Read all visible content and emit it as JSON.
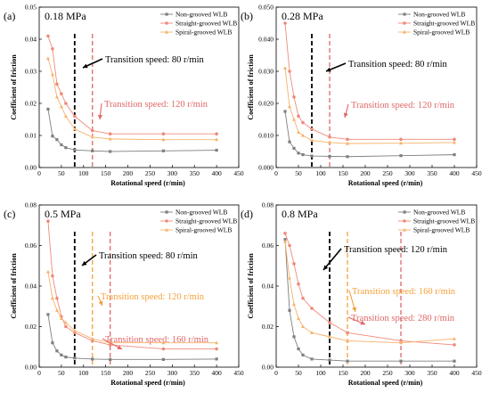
{
  "figure": {
    "colors": {
      "axis": "#000000",
      "transition_black": "#000000",
      "transition_red": "#e06666",
      "transition_orange": "#f5a03a",
      "non_grooved": "#7f7f7f",
      "straight_grooved": "#ef8a7a",
      "spiral_grooved": "#f6b26b"
    },
    "markers": {
      "non_grooved": "square",
      "straight_grooved": "circle",
      "spiral_grooved": "triangle"
    }
  },
  "chart_data": [
    {
      "type": "line",
      "panel_label": "(a)",
      "pressure": "0.18 MPa",
      "xlabel": "Rotational speed (r/min)",
      "ylabel": "Coefficient of friction",
      "xlim": [
        0,
        450
      ],
      "ylim": [
        0,
        0.05
      ],
      "xticks": [
        0,
        50,
        100,
        150,
        200,
        250,
        300,
        350,
        400,
        450
      ],
      "yticks": [
        0.0,
        0.01,
        0.02,
        0.03,
        0.04,
        0.05
      ],
      "ytick_labels": [
        "0.00",
        "0.01",
        "0.02",
        "0.03",
        "0.04",
        "0.05"
      ],
      "legend_position": "top-right",
      "series": [
        {
          "name": "Non-grooved WLB",
          "color_key": "non_grooved",
          "x": [
            20,
            30,
            40,
            50,
            60,
            80,
            120,
            160,
            280,
            400
          ],
          "y": [
            0.0182,
            0.0098,
            0.0087,
            0.0071,
            0.0062,
            0.0055,
            0.0052,
            0.005,
            0.0052,
            0.0054
          ]
        },
        {
          "name": "Straight-grooved WLB",
          "color_key": "straight_grooved",
          "x": [
            20,
            30,
            40,
            50,
            60,
            80,
            120,
            160,
            280,
            400
          ],
          "y": [
            0.041,
            0.037,
            0.026,
            0.023,
            0.02,
            0.016,
            0.0115,
            0.0105,
            0.0105,
            0.0105
          ]
        },
        {
          "name": "Spiral-grooved WLB",
          "color_key": "spiral_grooved",
          "x": [
            20,
            30,
            40,
            50,
            60,
            80,
            120,
            160,
            280,
            400
          ],
          "y": [
            0.034,
            0.029,
            0.022,
            0.019,
            0.016,
            0.012,
            0.0095,
            0.0089,
            0.0087,
            0.0087
          ]
        }
      ],
      "annotations": [
        {
          "text": "Transition speed: 80 r/min",
          "speed": 80,
          "color_key": "transition_black"
        },
        {
          "text": "Transition speed: 120 r/min",
          "speed": 120,
          "color_key": "transition_red"
        }
      ]
    },
    {
      "type": "line",
      "panel_label": "(b)",
      "pressure": "0.28 MPa",
      "xlabel": "Rotational speed (r/min)",
      "ylabel": "Coefficient of friction",
      "xlim": [
        0,
        450
      ],
      "ylim": [
        0,
        0.05
      ],
      "xticks": [
        0,
        50,
        100,
        150,
        200,
        250,
        300,
        350,
        400,
        450
      ],
      "yticks": [
        0.0,
        0.01,
        0.02,
        0.03,
        0.04,
        0.05
      ],
      "ytick_labels": [
        "0.000",
        "0.010",
        "0.020",
        "0.030",
        "0.040",
        "0.050"
      ],
      "legend_position": "top-right",
      "series": [
        {
          "name": "Non-grooved WLB",
          "color_key": "non_grooved",
          "x": [
            20,
            30,
            40,
            50,
            60,
            80,
            120,
            160,
            280,
            400
          ],
          "y": [
            0.0175,
            0.008,
            0.006,
            0.0045,
            0.004,
            0.0036,
            0.0035,
            0.0034,
            0.0037,
            0.004
          ]
        },
        {
          "name": "Straight-grooved WLB",
          "color_key": "straight_grooved",
          "x": [
            20,
            30,
            40,
            50,
            60,
            80,
            120,
            160,
            280,
            400
          ],
          "y": [
            0.045,
            0.03,
            0.022,
            0.016,
            0.014,
            0.012,
            0.0095,
            0.0088,
            0.0088,
            0.0088
          ]
        },
        {
          "name": "Spiral-grooved WLB",
          "color_key": "spiral_grooved",
          "x": [
            20,
            30,
            40,
            50,
            60,
            80,
            120,
            160,
            280,
            400
          ],
          "y": [
            0.031,
            0.019,
            0.015,
            0.011,
            0.01,
            0.0085,
            0.0078,
            0.0075,
            0.0076,
            0.0078
          ]
        }
      ],
      "annotations": [
        {
          "text": "Transition speed: 80 r/min",
          "speed": 80,
          "color_key": "transition_black"
        },
        {
          "text": "Transition speed: 120 r/min",
          "speed": 120,
          "color_key": "transition_red"
        }
      ]
    },
    {
      "type": "line",
      "panel_label": "(c)",
      "pressure": "0.5 MPa",
      "xlabel": "Rotational speed (r/min)",
      "ylabel": "Coefficient of friction",
      "xlim": [
        0,
        450
      ],
      "ylim": [
        0,
        0.08
      ],
      "xticks": [
        0,
        50,
        100,
        150,
        200,
        250,
        300,
        350,
        400,
        450
      ],
      "yticks": [
        0.0,
        0.02,
        0.04,
        0.06,
        0.08
      ],
      "ytick_labels": [
        "0.00",
        "0.02",
        "0.04",
        "0.06",
        "0.08"
      ],
      "legend_position": "top-right",
      "series": [
        {
          "name": "Non-grooved WLB",
          "color_key": "non_grooved",
          "x": [
            20,
            30,
            40,
            50,
            60,
            80,
            120,
            160,
            280,
            400
          ],
          "y": [
            0.026,
            0.012,
            0.008,
            0.006,
            0.005,
            0.0045,
            0.004,
            0.0038,
            0.0038,
            0.004
          ]
        },
        {
          "name": "Straight-grooved WLB",
          "color_key": "straight_grooved",
          "x": [
            20,
            30,
            40,
            50,
            60,
            80,
            120,
            160,
            280,
            400
          ],
          "y": [
            0.072,
            0.045,
            0.034,
            0.025,
            0.02,
            0.017,
            0.013,
            0.011,
            0.009,
            0.009
          ]
        },
        {
          "name": "Spiral-grooved WLB",
          "color_key": "spiral_grooved",
          "x": [
            20,
            30,
            40,
            50,
            60,
            80,
            120,
            160,
            280,
            400
          ],
          "y": [
            0.047,
            0.034,
            0.028,
            0.024,
            0.022,
            0.018,
            0.014,
            0.012,
            0.012,
            0.012
          ]
        }
      ],
      "annotations": [
        {
          "text": "Transition speed: 80 r/min",
          "speed": 80,
          "color_key": "transition_black"
        },
        {
          "text": "Transition speed: 120 r/min",
          "speed": 120,
          "color_key": "transition_orange"
        },
        {
          "text": "Transition speed: 160 r/min",
          "speed": 160,
          "color_key": "transition_red"
        }
      ]
    },
    {
      "type": "line",
      "panel_label": "(d)",
      "pressure": "0.8 MPa",
      "xlabel": "Rotational speed (r/min)",
      "ylabel": "Coefficient of friction",
      "xlim": [
        0,
        450
      ],
      "ylim": [
        0,
        0.08
      ],
      "xticks": [
        0,
        50,
        100,
        150,
        200,
        250,
        300,
        350,
        400,
        450
      ],
      "yticks": [
        0.0,
        0.02,
        0.04,
        0.06,
        0.08
      ],
      "ytick_labels": [
        "0.00",
        "0.02",
        "0.04",
        "0.06",
        "0.08"
      ],
      "legend_position": "top-right",
      "series": [
        {
          "name": "Non-grooved WLB",
          "color_key": "non_grooved",
          "x": [
            20,
            30,
            40,
            50,
            60,
            80,
            120,
            160,
            280,
            400
          ],
          "y": [
            0.063,
            0.028,
            0.015,
            0.009,
            0.006,
            0.004,
            0.0035,
            0.003,
            0.003,
            0.003
          ]
        },
        {
          "name": "Straight-grooved WLB",
          "color_key": "straight_grooved",
          "x": [
            20,
            30,
            40,
            50,
            60,
            80,
            120,
            160,
            280,
            400
          ],
          "y": [
            0.066,
            0.06,
            0.051,
            0.041,
            0.034,
            0.029,
            0.022,
            0.017,
            0.013,
            0.011
          ]
        },
        {
          "name": "Spiral-grooved WLB",
          "color_key": "spiral_grooved",
          "x": [
            20,
            30,
            40,
            50,
            60,
            80,
            120,
            160,
            280,
            400
          ],
          "y": [
            0.062,
            0.044,
            0.031,
            0.024,
            0.02,
            0.017,
            0.015,
            0.013,
            0.012,
            0.014
          ]
        }
      ],
      "annotations": [
        {
          "text": "Transition speed: 120 r/min",
          "speed": 120,
          "color_key": "transition_black"
        },
        {
          "text": "Transition speed: 160 r/min",
          "speed": 160,
          "color_key": "transition_orange"
        },
        {
          "text": "Transition speed: 280 r/min",
          "speed": 280,
          "color_key": "transition_red"
        }
      ]
    }
  ]
}
